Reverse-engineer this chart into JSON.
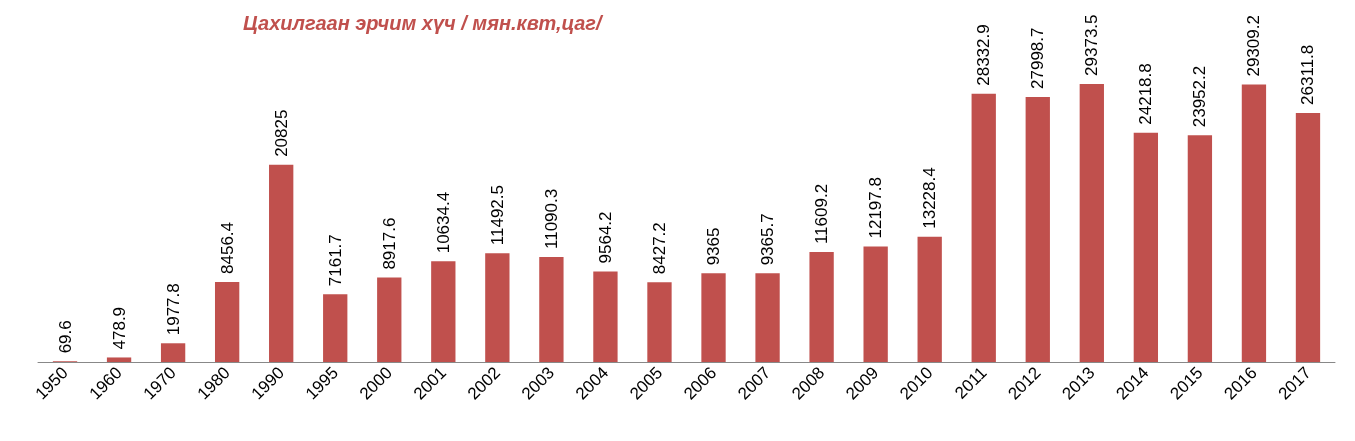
{
  "chart_data": {
    "type": "bar",
    "title": "Цахилгаан эрчим хүч / мян.квт,цаг/",
    "categories": [
      "1950",
      "1960",
      "1970",
      "1980",
      "1990",
      "1995",
      "2000",
      "2001",
      "2002",
      "2003",
      "2004",
      "2005",
      "2006",
      "2007",
      "2008",
      "2009",
      "2010",
      "2011",
      "2012",
      "2013",
      "2014",
      "2015",
      "2016",
      "2017"
    ],
    "values": [
      69.6,
      478.9,
      1977.8,
      8456.4,
      20825,
      7161.7,
      8917.6,
      10634.4,
      11492.5,
      11090.3,
      9564.2,
      8427.2,
      9365,
      9365.7,
      11609.2,
      12197.8,
      13228.4,
      28332.9,
      27998.7,
      29373.5,
      24218.8,
      23952.2,
      29309.2,
      26311.8
    ],
    "color": "#c0504d",
    "data_labels": true,
    "tick_labels": "x"
  }
}
